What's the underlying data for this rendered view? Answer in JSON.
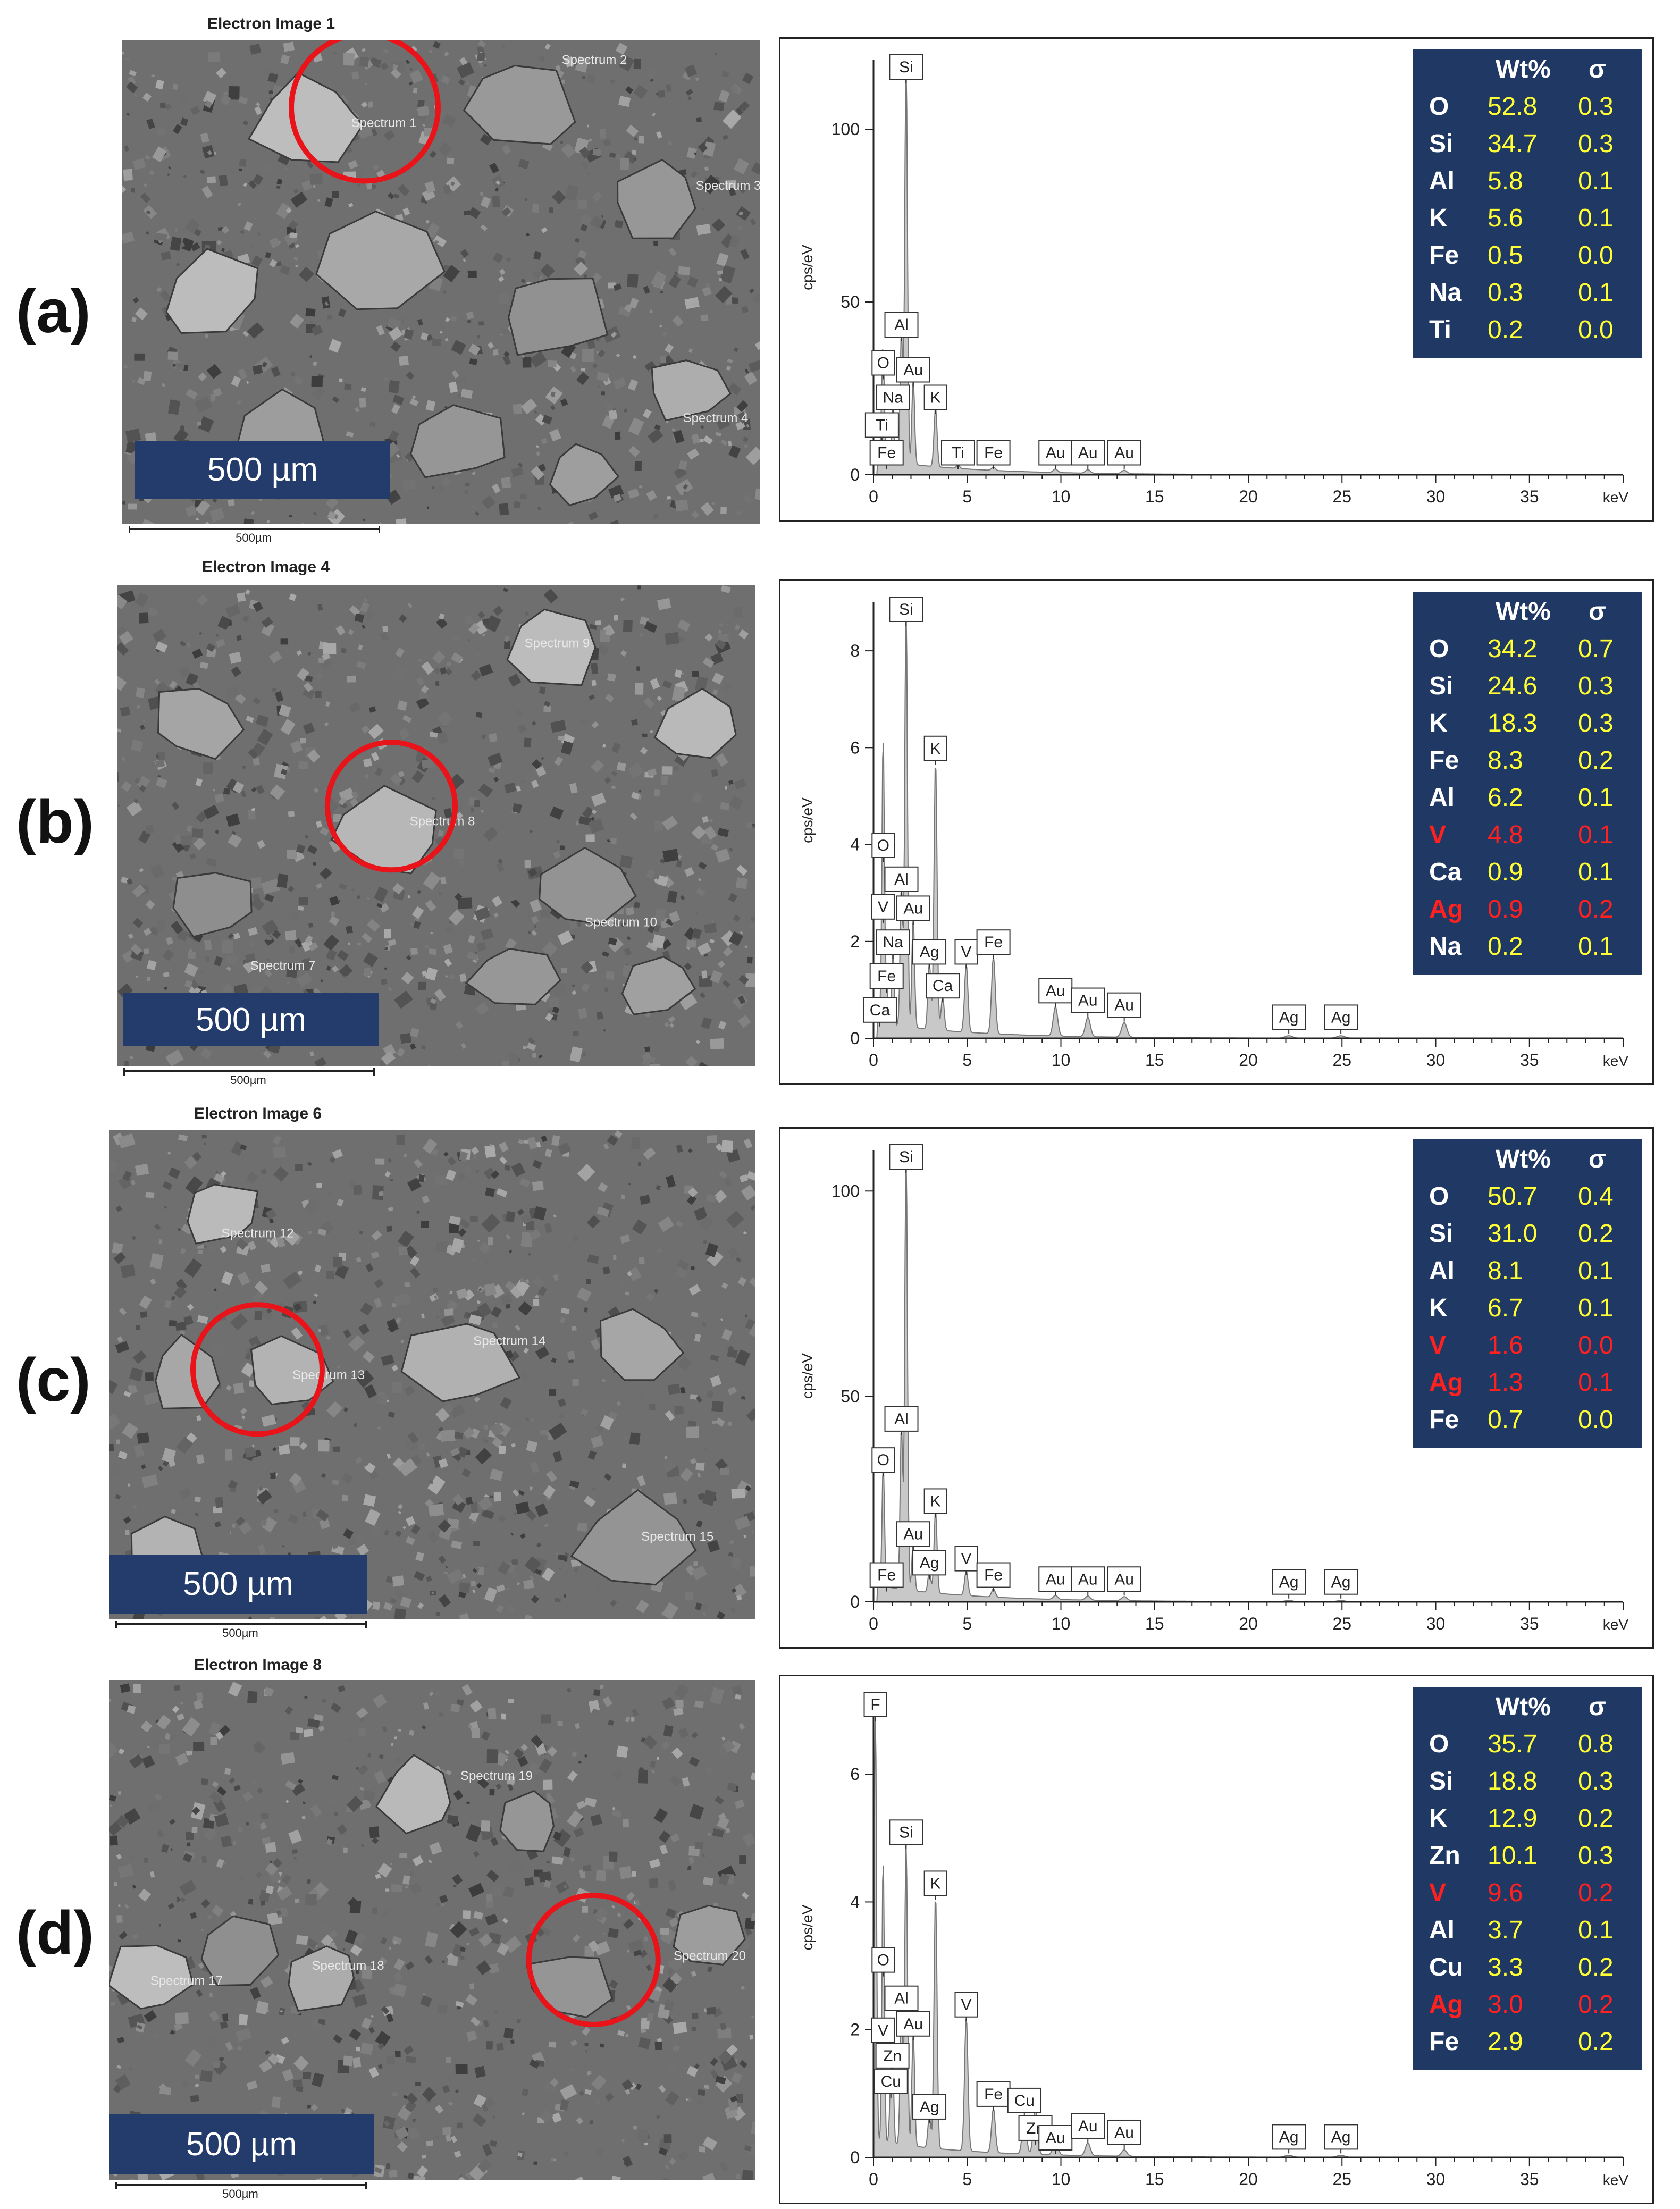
{
  "scale_label": "500 µm",
  "scalebar_text": "500µm",
  "table_headers": {
    "wt": "Wt%",
    "sigma": "σ"
  },
  "panels": [
    {
      "label": "(a)",
      "image_title": "Electron Image 1",
      "spectrum_labels": [
        "Spectrum 1",
        "Spectrum 2",
        "Spectrum 3",
        "Spectrum 4"
      ],
      "table": [
        {
          "el": "O",
          "wt": "52.8",
          "sigma": "0.3",
          "highlight": false
        },
        {
          "el": "Si",
          "wt": "34.7",
          "sigma": "0.3",
          "highlight": false
        },
        {
          "el": "Al",
          "wt": "5.8",
          "sigma": "0.1",
          "highlight": false
        },
        {
          "el": "K",
          "wt": "5.6",
          "sigma": "0.1",
          "highlight": false
        },
        {
          "el": "Fe",
          "wt": "0.5",
          "sigma": "0.0",
          "highlight": false
        },
        {
          "el": "Na",
          "wt": "0.3",
          "sigma": "0.1",
          "highlight": false
        },
        {
          "el": "Ti",
          "wt": "0.2",
          "sigma": "0.0",
          "highlight": false
        }
      ]
    },
    {
      "label": "(b)",
      "image_title": "Electron Image 4",
      "spectrum_labels": [
        "Spectrum 9",
        "Spectrum 8",
        "Spectrum 7",
        "Spectrum 10"
      ],
      "table": [
        {
          "el": "O",
          "wt": "34.2",
          "sigma": "0.7",
          "highlight": false
        },
        {
          "el": "Si",
          "wt": "24.6",
          "sigma": "0.3",
          "highlight": false
        },
        {
          "el": "K",
          "wt": "18.3",
          "sigma": "0.3",
          "highlight": false
        },
        {
          "el": "Fe",
          "wt": "8.3",
          "sigma": "0.2",
          "highlight": false
        },
        {
          "el": "Al",
          "wt": "6.2",
          "sigma": "0.1",
          "highlight": false
        },
        {
          "el": "V",
          "wt": "4.8",
          "sigma": "0.1",
          "highlight": true
        },
        {
          "el": "Ca",
          "wt": "0.9",
          "sigma": "0.1",
          "highlight": false
        },
        {
          "el": "Ag",
          "wt": "0.9",
          "sigma": "0.2",
          "highlight": true
        },
        {
          "el": "Na",
          "wt": "0.2",
          "sigma": "0.1",
          "highlight": false
        }
      ]
    },
    {
      "label": "(c)",
      "image_title": "Electron Image 6",
      "spectrum_labels": [
        "Spectrum 12",
        "Spectrum 13",
        "Spectrum 14",
        "Spectrum 15"
      ],
      "table": [
        {
          "el": "O",
          "wt": "50.7",
          "sigma": "0.4",
          "highlight": false
        },
        {
          "el": "Si",
          "wt": "31.0",
          "sigma": "0.2",
          "highlight": false
        },
        {
          "el": "Al",
          "wt": "8.1",
          "sigma": "0.1",
          "highlight": false
        },
        {
          "el": "K",
          "wt": "6.7",
          "sigma": "0.1",
          "highlight": false
        },
        {
          "el": "V",
          "wt": "1.6",
          "sigma": "0.0",
          "highlight": true
        },
        {
          "el": "Ag",
          "wt": "1.3",
          "sigma": "0.1",
          "highlight": true
        },
        {
          "el": "Fe",
          "wt": "0.7",
          "sigma": "0.0",
          "highlight": false
        }
      ]
    },
    {
      "label": "(d)",
      "image_title": "Electron Image 8",
      "spectrum_labels": [
        "Spectrum 19",
        "Spectrum 20",
        "Spectrum 18",
        "Spectrum 17"
      ],
      "table": [
        {
          "el": "O",
          "wt": "35.7",
          "sigma": "0.8",
          "highlight": false
        },
        {
          "el": "Si",
          "wt": "18.8",
          "sigma": "0.3",
          "highlight": false
        },
        {
          "el": "K",
          "wt": "12.9",
          "sigma": "0.2",
          "highlight": false
        },
        {
          "el": "Zn",
          "wt": "10.1",
          "sigma": "0.3",
          "highlight": false
        },
        {
          "el": "V",
          "wt": "9.6",
          "sigma": "0.2",
          "highlight": true
        },
        {
          "el": "Al",
          "wt": "3.7",
          "sigma": "0.1",
          "highlight": false
        },
        {
          "el": "Cu",
          "wt": "3.3",
          "sigma": "0.2",
          "highlight": false
        },
        {
          "el": "Ag",
          "wt": "3.0",
          "sigma": "0.2",
          "highlight": true
        },
        {
          "el": "Fe",
          "wt": "2.9",
          "sigma": "0.2",
          "highlight": false
        }
      ]
    }
  ],
  "chart_data": [
    {
      "type": "line",
      "xlabel": "keV",
      "ylabel": "cps/eV",
      "xlim": [
        0,
        40
      ],
      "ylim": [
        0,
        120
      ],
      "x_ticks": [
        0,
        5,
        10,
        15,
        20,
        25,
        30,
        35
      ],
      "y_ticks": [
        0,
        50,
        100
      ],
      "peaks": [
        {
          "label": "Si",
          "x": 1.74,
          "y": 118
        },
        {
          "label": "Al",
          "x": 1.49,
          "y": 38
        },
        {
          "label": "O",
          "x": 0.52,
          "y": 27
        },
        {
          "label": "Au",
          "x": 2.12,
          "y": 25
        },
        {
          "label": "Na",
          "x": 1.04,
          "y": 18
        },
        {
          "label": "K",
          "x": 3.31,
          "y": 17
        },
        {
          "label": "Ti",
          "x": 0.45,
          "y": 10
        },
        {
          "label": "Fe",
          "x": 0.7,
          "y": 3
        },
        {
          "label": "Ti",
          "x": 4.51,
          "y": 1
        },
        {
          "label": "Fe",
          "x": 6.4,
          "y": 1
        },
        {
          "label": "Au",
          "x": 9.71,
          "y": 1
        },
        {
          "label": "Au",
          "x": 11.44,
          "y": 1
        },
        {
          "label": "Au",
          "x": 13.38,
          "y": 1
        }
      ]
    },
    {
      "type": "line",
      "xlabel": "keV",
      "ylabel": "cps/eV",
      "xlim": [
        0,
        40
      ],
      "ylim": [
        0,
        9
      ],
      "x_ticks": [
        0,
        5,
        10,
        15,
        20,
        25,
        30,
        35
      ],
      "y_ticks": [
        0,
        2,
        4,
        6,
        8
      ],
      "peaks": [
        {
          "label": "Si",
          "x": 1.74,
          "y": 8.8
        },
        {
          "label": "K",
          "x": 3.31,
          "y": 5.6
        },
        {
          "label": "O",
          "x": 0.52,
          "y": 3.6
        },
        {
          "label": "Al",
          "x": 1.49,
          "y": 2.9
        },
        {
          "label": "Au",
          "x": 2.12,
          "y": 2.3
        },
        {
          "label": "V",
          "x": 0.51,
          "y": 2.4
        },
        {
          "label": "Na",
          "x": 1.04,
          "y": 1.6
        },
        {
          "label": "Ag",
          "x": 2.98,
          "y": 1.4
        },
        {
          "label": "V",
          "x": 4.95,
          "y": 1.4
        },
        {
          "label": "Fe",
          "x": 6.4,
          "y": 1.6
        },
        {
          "label": "Fe",
          "x": 0.7,
          "y": 0.9
        },
        {
          "label": "Ca",
          "x": 3.69,
          "y": 0.7
        },
        {
          "label": "Ca",
          "x": 0.34,
          "y": 0.2
        },
        {
          "label": "Au",
          "x": 9.71,
          "y": 0.6
        },
        {
          "label": "Au",
          "x": 11.44,
          "y": 0.4
        },
        {
          "label": "Au",
          "x": 13.38,
          "y": 0.3
        },
        {
          "label": "Ag",
          "x": 22.16,
          "y": 0.05
        },
        {
          "label": "Ag",
          "x": 24.94,
          "y": 0.05
        }
      ]
    },
    {
      "type": "line",
      "xlabel": "keV",
      "ylabel": "cps/eV",
      "xlim": [
        0,
        40
      ],
      "ylim": [
        0,
        110
      ],
      "x_ticks": [
        0,
        5,
        10,
        15,
        20,
        25,
        30,
        35
      ],
      "y_ticks": [
        0,
        50,
        100
      ],
      "peaks": [
        {
          "label": "Si",
          "x": 1.74,
          "y": 108
        },
        {
          "label": "Al",
          "x": 1.49,
          "y": 40
        },
        {
          "label": "O",
          "x": 0.52,
          "y": 30
        },
        {
          "label": "K",
          "x": 3.31,
          "y": 20
        },
        {
          "label": "Au",
          "x": 2.12,
          "y": 12
        },
        {
          "label": "V",
          "x": 4.95,
          "y": 6
        },
        {
          "label": "Ag",
          "x": 2.98,
          "y": 5
        },
        {
          "label": "Fe",
          "x": 0.7,
          "y": 2
        },
        {
          "label": "Fe",
          "x": 6.4,
          "y": 2
        },
        {
          "label": "Au",
          "x": 9.71,
          "y": 1
        },
        {
          "label": "Au",
          "x": 11.44,
          "y": 1
        },
        {
          "label": "Au",
          "x": 13.38,
          "y": 1
        },
        {
          "label": "Ag",
          "x": 22.16,
          "y": 0.3
        },
        {
          "label": "Ag",
          "x": 24.94,
          "y": 0.3
        }
      ]
    },
    {
      "type": "line",
      "xlabel": "keV",
      "ylabel": "cps/eV",
      "xlim": [
        0,
        40
      ],
      "ylim": [
        0,
        7.2
      ],
      "x_ticks": [
        0,
        5,
        10,
        15,
        20,
        25,
        30,
        35
      ],
      "y_ticks": [
        0,
        2,
        4,
        6
      ],
      "peaks": [
        {
          "label": "F",
          "x": 0.1,
          "y": 7.2
        },
        {
          "label": "Si",
          "x": 1.74,
          "y": 4.8
        },
        {
          "label": "K",
          "x": 3.31,
          "y": 4.0
        },
        {
          "label": "O",
          "x": 0.52,
          "y": 2.8
        },
        {
          "label": "Al",
          "x": 1.49,
          "y": 2.2
        },
        {
          "label": "Au",
          "x": 2.12,
          "y": 1.8
        },
        {
          "label": "V",
          "x": 4.95,
          "y": 2.1
        },
        {
          "label": "V",
          "x": 0.51,
          "y": 1.7
        },
        {
          "label": "Zn",
          "x": 1.01,
          "y": 1.3
        },
        {
          "label": "Cu",
          "x": 0.93,
          "y": 0.9
        },
        {
          "label": "Ag",
          "x": 2.98,
          "y": 0.5
        },
        {
          "label": "Fe",
          "x": 6.4,
          "y": 0.7
        },
        {
          "label": "Cu",
          "x": 8.05,
          "y": 0.6
        },
        {
          "label": "Zn",
          "x": 8.64,
          "y": 0.7
        },
        {
          "label": "Au",
          "x": 9.71,
          "y": 0.3
        },
        {
          "label": "Au",
          "x": 11.44,
          "y": 0.2
        },
        {
          "label": "Au",
          "x": 13.38,
          "y": 0.1
        },
        {
          "label": "Ag",
          "x": 22.16,
          "y": 0.03
        },
        {
          "label": "Ag",
          "x": 24.94,
          "y": 0.03
        }
      ]
    }
  ]
}
